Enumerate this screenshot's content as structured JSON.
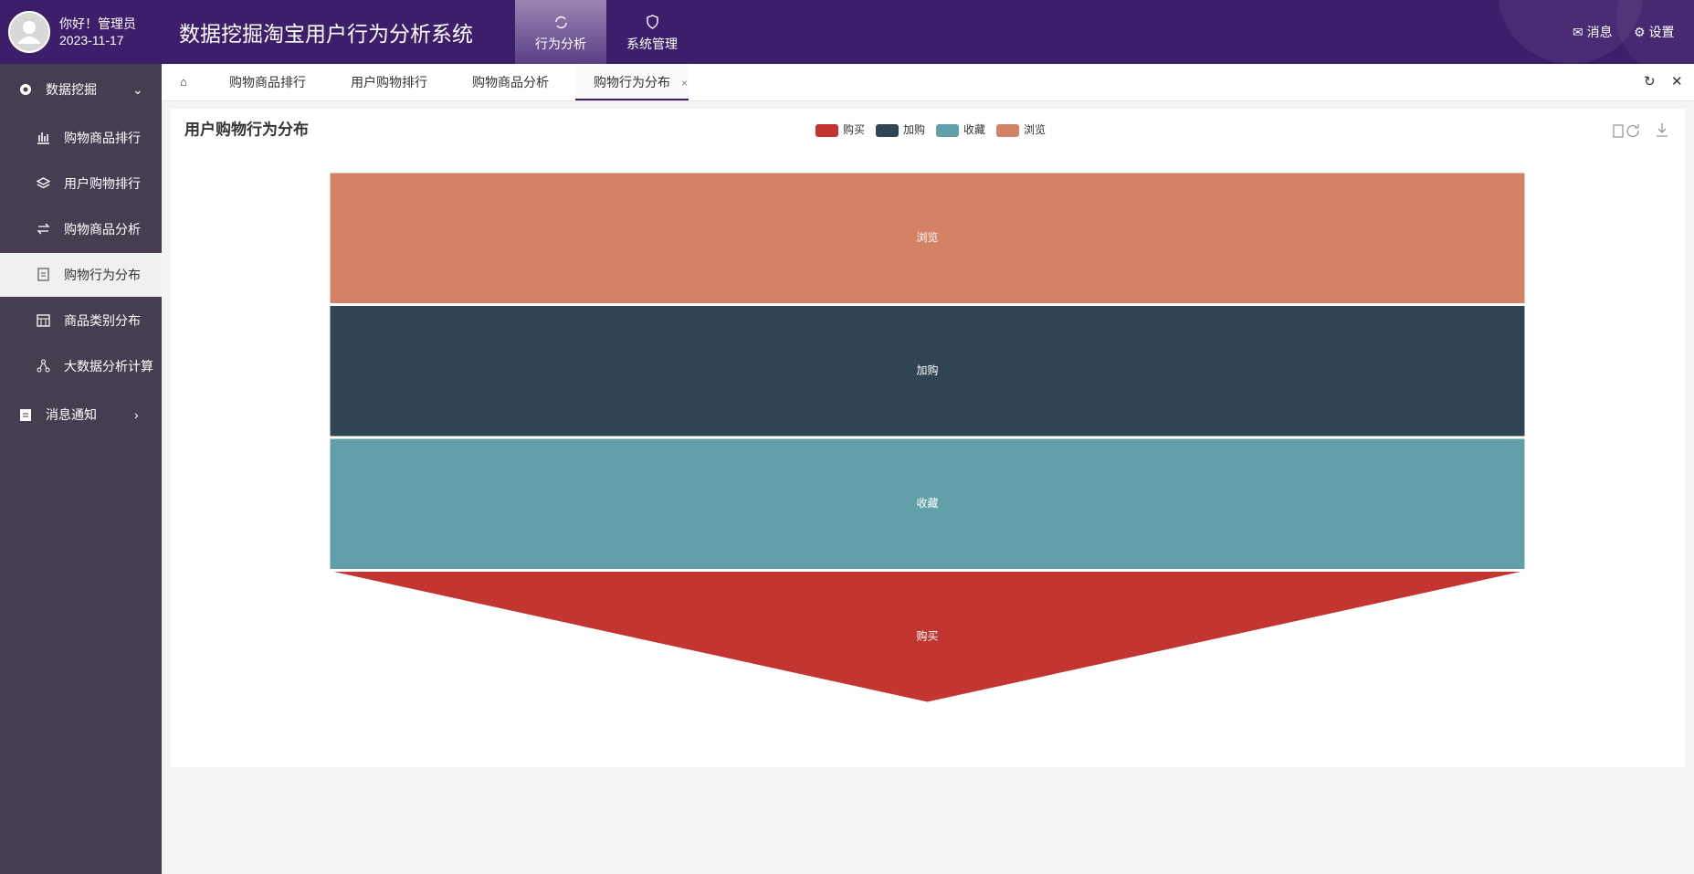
{
  "header": {
    "greeting": "你好！管理员",
    "date": "2023-11-17",
    "system_title": "数据挖掘淘宝用户行为分析系统",
    "nav": [
      "行为分析",
      "系统管理"
    ],
    "actions": [
      "消息",
      "设置"
    ]
  },
  "sidebar": {
    "groups": [
      {
        "label": "数据挖掘",
        "items": [
          "购物商品排行",
          "用户购物排行",
          "购物商品分析",
          "购物行为分布",
          "商品类别分布",
          "大数据分析计算"
        ]
      },
      {
        "label": "消息通知"
      }
    ]
  },
  "tabs": [
    "购物商品排行",
    "用户购物排行",
    "购物商品分析",
    "购物行为分布"
  ],
  "chart_data": {
    "type": "funnel",
    "title": "用户购物行为分布",
    "legend": [
      {
        "name": "购买",
        "color": "#c23531"
      },
      {
        "name": "加购",
        "color": "#2f4554"
      },
      {
        "name": "收藏",
        "color": "#61a0a8"
      },
      {
        "name": "浏览",
        "color": "#d48265"
      }
    ],
    "categories": [
      "浏览",
      "加购",
      "收藏",
      "购买"
    ],
    "values": [
      100,
      100,
      100,
      100
    ],
    "colors": [
      "#d48265",
      "#2f4554",
      "#61a0a8",
      "#c23531"
    ],
    "xlim": [
      0,
      100
    ]
  }
}
